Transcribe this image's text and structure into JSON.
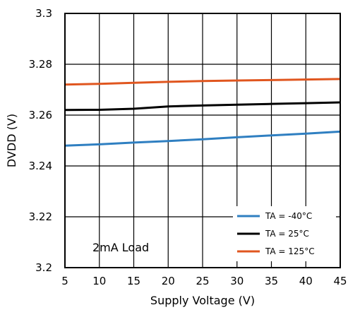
{
  "chart_data": {
    "type": "line",
    "xlabel": "Supply Voltage (V)",
    "ylabel": "DVDD (V)",
    "xlim": [
      5,
      45
    ],
    "ylim": [
      3.2,
      3.3
    ],
    "xticks": [
      5,
      10,
      15,
      20,
      25,
      30,
      35,
      40,
      45
    ],
    "yticks": [
      3.2,
      3.22,
      3.24,
      3.26,
      3.28,
      3.3
    ],
    "ytick_labels": [
      "3.2",
      "3.22",
      "3.24",
      "3.26",
      "3.28",
      "3.3"
    ],
    "grid": true,
    "legend_position": "bottom-right",
    "annotation": "2mA Load",
    "series": [
      {
        "name": "TA = -40°C",
        "color": "#2f7fc1",
        "x": [
          5,
          10,
          15,
          20,
          25,
          30,
          35,
          40,
          45
        ],
        "values": [
          3.248,
          3.2485,
          3.2492,
          3.2498,
          3.2505,
          3.2513,
          3.252,
          3.2527,
          3.2535
        ]
      },
      {
        "name": "TA = 25°C",
        "color": "#000000",
        "x": [
          5,
          10,
          15,
          20,
          25,
          30,
          35,
          40,
          45
        ],
        "values": [
          3.262,
          3.2621,
          3.2625,
          3.2634,
          3.2638,
          3.2641,
          3.2644,
          3.2647,
          3.265
        ]
      },
      {
        "name": "TA = 125°C",
        "color": "#e0561f",
        "x": [
          5,
          10,
          15,
          20,
          25,
          30,
          35,
          40,
          45
        ],
        "values": [
          3.272,
          3.2723,
          3.2727,
          3.2731,
          3.2734,
          3.2736,
          3.2738,
          3.274,
          3.2742
        ]
      }
    ]
  }
}
